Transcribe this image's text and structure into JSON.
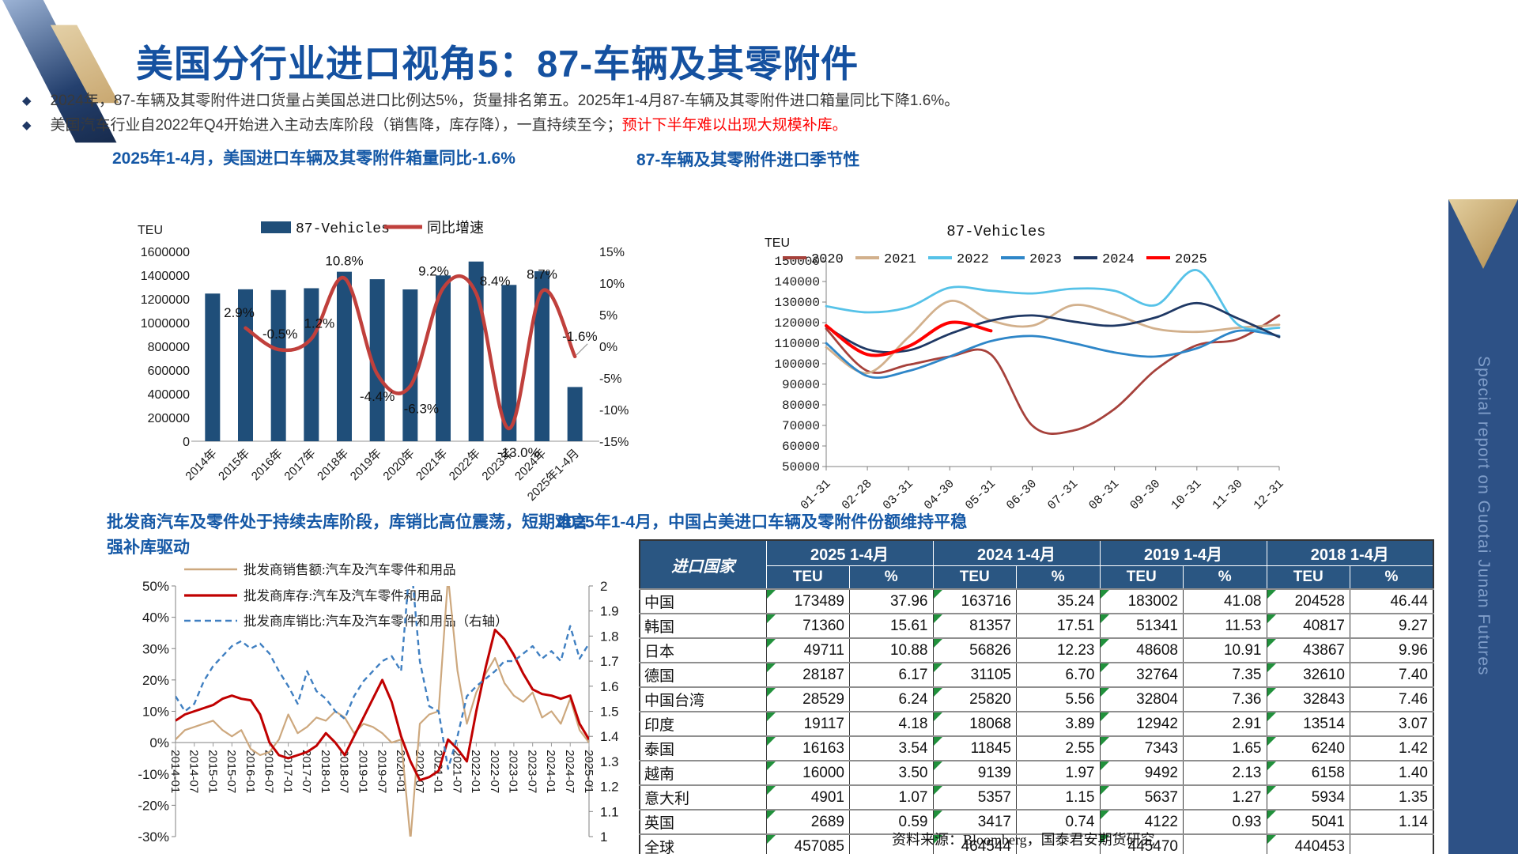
{
  "page": {
    "title": "美国分行业进口视角5：87-车辆及其零附件",
    "bullets": [
      {
        "text": "2024年，87-车辆及其零附件进口货量占美国总进口比例达5%，货量排名第五。2025年1-4月87-车辆及其零附件进口箱量同比下降1.6%。",
        "red": ""
      },
      {
        "text": "美国汽车行业自2022年Q4开始进入主动去库阶段（销售降，库存降），一直持续至今；",
        "red": "预计下半年难以出现大规模补库。"
      }
    ],
    "source": "资料来源：Bloomberg，国泰君安期货研究"
  },
  "sidebar": {
    "text": "Special report on Guotai Junan Futures"
  },
  "chart_data": [
    {
      "type": "bar+line",
      "title": "2025年1-4月，美国进口车辆及其零附件箱量同比-1.6%",
      "unit_label": "TEU",
      "legend": [
        "87-Vehicles",
        "同比增速"
      ],
      "categories": [
        "2014年",
        "2015年",
        "2016年",
        "2017年",
        "2018年",
        "2019年",
        "2020年",
        "2021年",
        "2022年",
        "2023年",
        "2024年",
        "2025年1-4月"
      ],
      "bar_values": [
        1245000,
        1281000,
        1275000,
        1290000,
        1429000,
        1366000,
        1280000,
        1398000,
        1515000,
        1318000,
        1433000,
        457085
      ],
      "line_values": [
        null,
        2.9,
        -0.5,
        1.2,
        10.8,
        -4.4,
        -6.3,
        9.2,
        8.4,
        -13.0,
        8.7,
        -1.6
      ],
      "line_labels": [
        "2.9%",
        "-0.5%",
        "1.2%",
        "10.8%",
        "-4.4%",
        "-6.3%",
        "9.2%",
        "8.4%",
        "-13.0%",
        "8.7%",
        "-1.6%"
      ],
      "ylim_left": [
        0,
        1600000
      ],
      "ytick_step_left": 200000,
      "ylim_right": [
        -15,
        15
      ],
      "ytick_step_right": 5,
      "bar_color": "#1F4E79",
      "line_color": "#C0403C"
    },
    {
      "type": "line",
      "title": "87-车辆及其零附件进口季节性",
      "subtitle": "87-Vehicles",
      "unit_label": "TEU",
      "x": [
        "01-31",
        "02-28",
        "03-31",
        "04-30",
        "05-31",
        "06-30",
        "07-31",
        "08-31",
        "09-30",
        "10-31",
        "11-30",
        "12-31"
      ],
      "ylim": [
        50000,
        150000
      ],
      "ytick_step": 10000,
      "series": [
        {
          "name": "2020",
          "color": "#A6413B",
          "values": [
            117000,
            96500,
            99500,
            103500,
            104500,
            70000,
            67500,
            78000,
            97000,
            109000,
            112000,
            123500
          ]
        },
        {
          "name": "2021",
          "color": "#D2B08C",
          "values": [
            108000,
            95500,
            113000,
            130500,
            121000,
            118500,
            128500,
            124000,
            117000,
            115500,
            117500,
            119000
          ]
        },
        {
          "name": "2022",
          "color": "#56C2E8",
          "values": [
            128000,
            125000,
            127500,
            137000,
            135500,
            134200,
            136500,
            135500,
            128500,
            145500,
            119000,
            117500
          ]
        },
        {
          "name": "2023",
          "color": "#2E86C8",
          "values": [
            110000,
            94000,
            96500,
            103500,
            111000,
            113500,
            110000,
            105500,
            103500,
            107500,
            116000,
            113500
          ]
        },
        {
          "name": "2024",
          "color": "#1F3864",
          "values": [
            118000,
            107000,
            106500,
            114500,
            121000,
            123500,
            120500,
            118500,
            122500,
            129500,
            122000,
            113000
          ]
        },
        {
          "name": "2025",
          "color": "#FF0000",
          "values": [
            118500,
            104500,
            108500,
            120000,
            116000
          ]
        }
      ]
    },
    {
      "type": "line",
      "title": "批发商汽车及零件处于持续去库阶段，库销比高位震荡，短期难言强补库驱动",
      "title_lines": [
        "批发商汽车及零件处于持续去库阶段，库销比高位震荡，短期难言",
        "强补库驱动"
      ],
      "x_ticks": [
        "2014-01",
        "2014-07",
        "2015-01",
        "2015-07",
        "2016-01",
        "2016-07",
        "2017-01",
        "2017-07",
        "2018-01",
        "2018-07",
        "2019-01",
        "2019-07",
        "2020-01",
        "2020-07",
        "2021-01",
        "2021-07",
        "2022-01",
        "2022-07",
        "2023-01",
        "2023-07",
        "2024-01",
        "2024-07",
        "2025-01"
      ],
      "ylim_left": [
        -30,
        50
      ],
      "ytick_step_left": 10,
      "ylim_right": [
        1,
        2
      ],
      "ytick_step_right": 0.1,
      "series": [
        {
          "name": "批发商销售额:汽车及汽车零件和用品",
          "axis": "left",
          "style": "solid",
          "color": "#CDA87E",
          "values": [
            1,
            4,
            5,
            6,
            7,
            4,
            2,
            4,
            -2,
            -4,
            -3,
            1,
            9,
            3,
            5,
            8,
            7,
            10,
            8,
            3,
            6,
            5,
            3,
            0,
            1,
            -31,
            6,
            9,
            10,
            53,
            23,
            6,
            16,
            22,
            27,
            19,
            15,
            13,
            16,
            8,
            10,
            6,
            14,
            4,
            0
          ]
        },
        {
          "name": "批发商库存:汽车及汽车零件和用品",
          "axis": "left",
          "style": "solid",
          "color": "#C00000",
          "values": [
            7,
            9,
            10,
            11,
            12,
            14,
            15,
            14,
            13.5,
            9,
            0,
            -4,
            -5,
            -4,
            -3,
            -1,
            3,
            0,
            -4,
            2,
            8,
            14,
            20,
            13,
            2,
            -6,
            -12,
            -11,
            -9,
            1,
            -2,
            -6,
            10,
            24,
            36,
            33,
            28,
            22,
            17,
            15.5,
            15,
            14,
            15,
            6,
            1
          ]
        },
        {
          "name": "批发商库销比:汽车及汽车零件和用品（右轴）",
          "axis": "right",
          "style": "dashed",
          "color": "#3F7FC1",
          "values": [
            1.56,
            1.5,
            1.53,
            1.62,
            1.68,
            1.72,
            1.76,
            1.78,
            1.75,
            1.77,
            1.73,
            1.66,
            1.6,
            1.53,
            1.66,
            1.58,
            1.55,
            1.5,
            1.47,
            1.56,
            1.62,
            1.66,
            1.7,
            1.72,
            1.66,
            2.12,
            1.7,
            1.52,
            1.5,
            1.27,
            1.4,
            1.56,
            1.6,
            1.63,
            1.66,
            1.7,
            1.7,
            1.73,
            1.76,
            1.71,
            1.74,
            1.7,
            1.84,
            1.71,
            1.77
          ]
        }
      ]
    }
  ],
  "table": {
    "title": "2025年1-4月，中国占美进口车辆及零附件份额维持平稳",
    "corner_header": "进口国家",
    "groups": [
      "2025 1-4月",
      "2024 1-4月",
      "2019 1-4月",
      "2018 1-4月"
    ],
    "sub_headers": [
      "TEU",
      "%"
    ],
    "rows": [
      [
        "中国",
        "173489",
        "37.96",
        "163716",
        "35.24",
        "183002",
        "41.08",
        "204528",
        "46.44"
      ],
      [
        "韩国",
        "71360",
        "15.61",
        "81357",
        "17.51",
        "51341",
        "11.53",
        "40817",
        "9.27"
      ],
      [
        "日本",
        "49711",
        "10.88",
        "56826",
        "12.23",
        "48608",
        "10.91",
        "43867",
        "9.96"
      ],
      [
        "德国",
        "28187",
        "6.17",
        "31105",
        "6.70",
        "32764",
        "7.35",
        "32610",
        "7.40"
      ],
      [
        "中国台湾",
        "28529",
        "6.24",
        "25820",
        "5.56",
        "32804",
        "7.36",
        "32843",
        "7.46"
      ],
      [
        "印度",
        "19117",
        "4.18",
        "18068",
        "3.89",
        "12942",
        "2.91",
        "13514",
        "3.07"
      ],
      [
        "泰国",
        "16163",
        "3.54",
        "11845",
        "2.55",
        "7343",
        "1.65",
        "6240",
        "1.42"
      ],
      [
        "越南",
        "16000",
        "3.50",
        "9139",
        "1.97",
        "9492",
        "2.13",
        "6158",
        "1.40"
      ],
      [
        "意大利",
        "4901",
        "1.07",
        "5357",
        "1.15",
        "5637",
        "1.27",
        "5934",
        "1.35"
      ],
      [
        "英国",
        "2689",
        "0.59",
        "3417",
        "0.74",
        "4122",
        "0.93",
        "5041",
        "1.14"
      ],
      [
        "全球",
        "457085",
        "",
        "464544",
        "",
        "445470",
        "",
        "440453",
        ""
      ]
    ]
  }
}
